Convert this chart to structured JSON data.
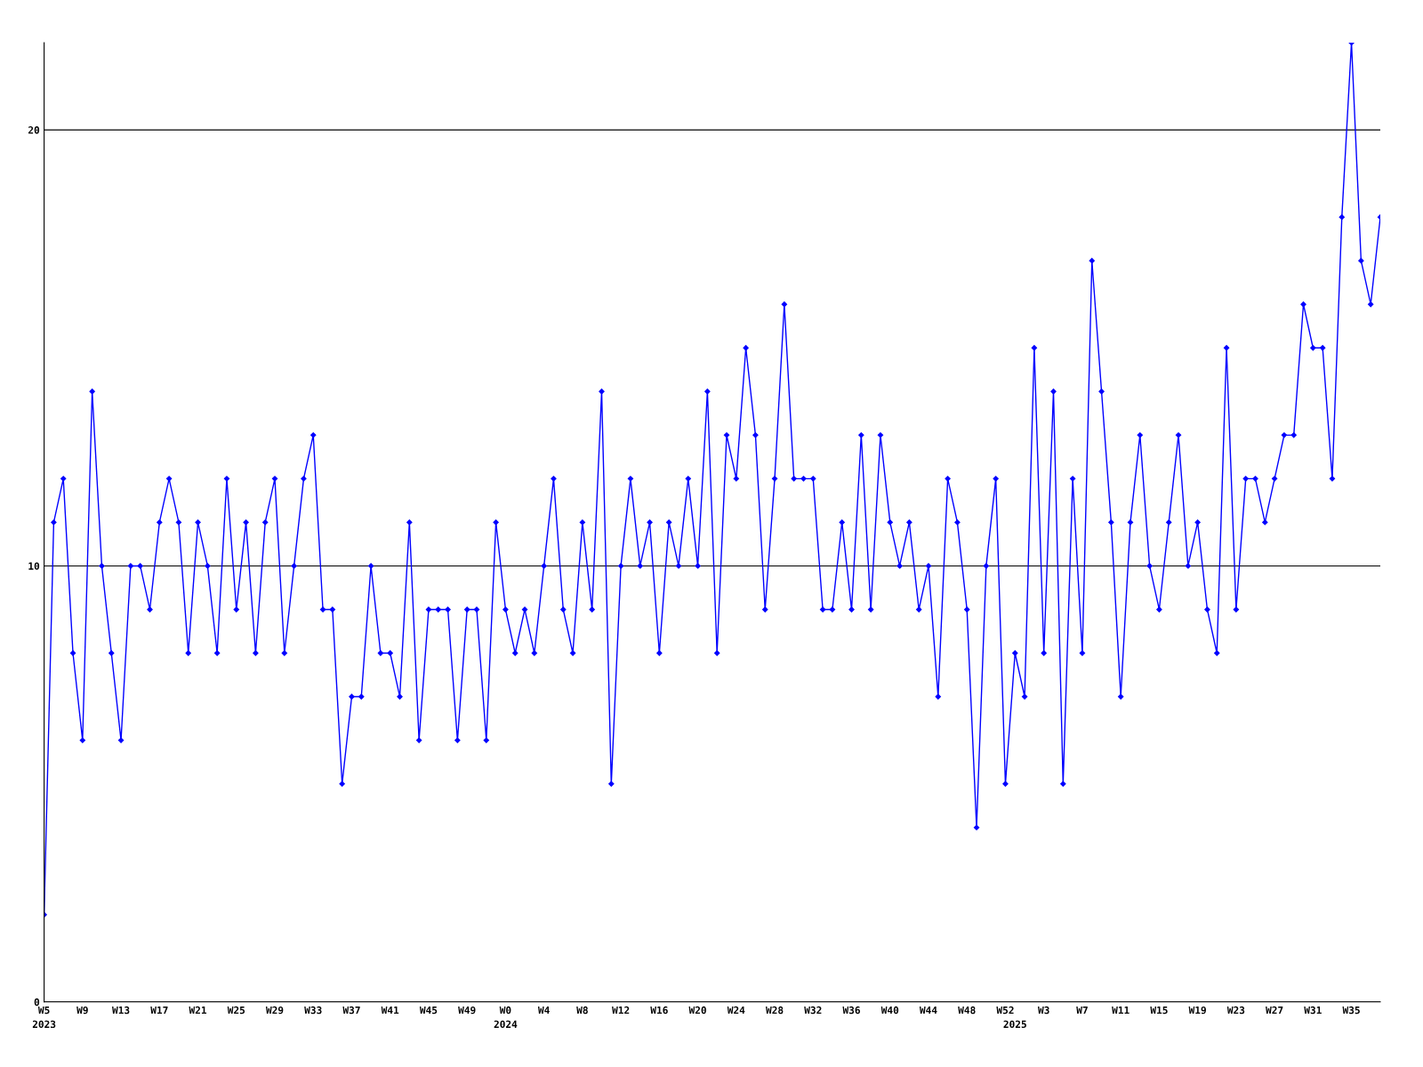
{
  "chart_data": {
    "type": "line",
    "categories": [
      "W5\n2023",
      null,
      null,
      null,
      "W9",
      null,
      null,
      null,
      "W13",
      null,
      null,
      null,
      "W17",
      null,
      null,
      null,
      "W21",
      null,
      null,
      null,
      "W25",
      null,
      null,
      null,
      "W29",
      null,
      null,
      null,
      "W33",
      null,
      null,
      null,
      "W37",
      null,
      null,
      null,
      "W41",
      null,
      null,
      null,
      "W45",
      null,
      null,
      null,
      "W49",
      null,
      null,
      null,
      "W0\n2024",
      null,
      null,
      null,
      "W4",
      null,
      null,
      null,
      "W8",
      null,
      null,
      null,
      "W12",
      null,
      null,
      null,
      "W16",
      null,
      null,
      null,
      "W20",
      null,
      null,
      null,
      "W24",
      null,
      null,
      null,
      "W28",
      null,
      null,
      null,
      "W32",
      null,
      null,
      null,
      "W36",
      null,
      null,
      null,
      "W40",
      null,
      null,
      null,
      "W44",
      null,
      null,
      null,
      "W48",
      null,
      null,
      null,
      "W52",
      "\n2025",
      null,
      null,
      "W3",
      null,
      null,
      null,
      "W7",
      null,
      null,
      null,
      "W11",
      null,
      null,
      null,
      "W15",
      null,
      null,
      null,
      "W19",
      null,
      null,
      null,
      "W23",
      null,
      null,
      null,
      "W27",
      null,
      null,
      null,
      "W31",
      null,
      null,
      null,
      "W35",
      null,
      null,
      null
    ],
    "series": [
      {
        "color": "#0000ff",
        "values": [
          2,
          11,
          12,
          8,
          6,
          14,
          10,
          8,
          6,
          10,
          10,
          9,
          11,
          12,
          11,
          8,
          11,
          10,
          8,
          12,
          9,
          11,
          8,
          11,
          12,
          8,
          10,
          12,
          13,
          9,
          9,
          5,
          7,
          7,
          10,
          8,
          8,
          7,
          11,
          6,
          9,
          9,
          9,
          6,
          9,
          9,
          6,
          11,
          9,
          8,
          9,
          8,
          10,
          12,
          9,
          8,
          11,
          9,
          14,
          5,
          10,
          12,
          10,
          11,
          8,
          11,
          10,
          12,
          10,
          14,
          8,
          13,
          12,
          15,
          13,
          9,
          12,
          16,
          12,
          12,
          12,
          9,
          9,
          11,
          9,
          13,
          9,
          13,
          11,
          10,
          11,
          9,
          10,
          7,
          12,
          11,
          9,
          4,
          10,
          12,
          5,
          8,
          7,
          15,
          8,
          14,
          5,
          12,
          8,
          17,
          14,
          11,
          7,
          11,
          13,
          10,
          9,
          11,
          13,
          10,
          11,
          9,
          8,
          15,
          9,
          12,
          12,
          11,
          12,
          13,
          13,
          16,
          15,
          15,
          12,
          18,
          22,
          17,
          16,
          18
        ]
      }
    ],
    "ylim": [
      0,
      22
    ],
    "yticks": [
      0,
      10,
      20
    ],
    "grid": "y",
    "marker": "diamond",
    "line_style": "solid",
    "legend": false
  }
}
